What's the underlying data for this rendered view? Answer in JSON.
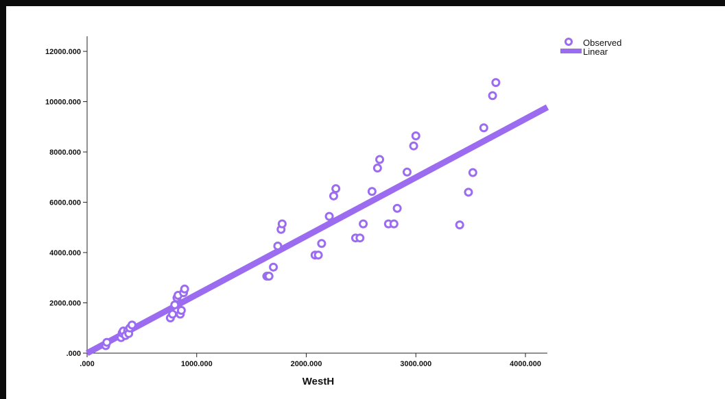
{
  "chart_data": {
    "type": "scatter",
    "xlabel": "WestH",
    "ylabel": "",
    "xlim": [
      0,
      4200
    ],
    "ylim": [
      0,
      12600
    ],
    "x_ticks": [
      0,
      1000,
      2000,
      3000,
      4000
    ],
    "x_tick_labels": [
      ".000",
      "1000.000",
      "2000.000",
      "3000.000",
      "4000.000"
    ],
    "y_ticks": [
      0,
      2000,
      4000,
      6000,
      8000,
      10000,
      12000
    ],
    "y_tick_labels": [
      ".000",
      "2000.000",
      "4000.000",
      "6000.000",
      "8000.000",
      "10000.000",
      "12000.000"
    ],
    "grid": false,
    "legend_position": "top-right",
    "series": [
      {
        "name": "Observed",
        "kind": "points",
        "color": "#9b6cf0",
        "x": [
          170,
          180,
          310,
          320,
          330,
          350,
          370,
          380,
          390,
          410,
          760,
          780,
          800,
          820,
          830,
          850,
          860,
          880,
          890,
          1640,
          1650,
          1660,
          1700,
          1740,
          1770,
          1780,
          2080,
          2110,
          2140,
          2210,
          2250,
          2270,
          2450,
          2490,
          2520,
          2600,
          2650,
          2670,
          2750,
          2800,
          2830,
          2920,
          2980,
          3000,
          3400,
          3480,
          3520,
          3620,
          3700,
          3730
        ],
        "y": [
          300,
          430,
          620,
          800,
          880,
          700,
          900,
          780,
          1000,
          1120,
          1400,
          1550,
          1920,
          2200,
          2300,
          1550,
          1700,
          2400,
          2550,
          3060,
          3060,
          3060,
          3420,
          4260,
          4920,
          5140,
          3900,
          3900,
          4360,
          5440,
          6250,
          6540,
          4580,
          4580,
          5140,
          6430,
          7360,
          7700,
          5140,
          5140,
          5760,
          7200,
          8240,
          8640,
          5100,
          6400,
          7180,
          8960,
          10240,
          10760
        ]
      },
      {
        "name": "Linear",
        "kind": "line",
        "color": "#9b6cf0",
        "x": [
          0,
          4200
        ],
        "y": [
          0,
          9780
        ]
      }
    ]
  }
}
